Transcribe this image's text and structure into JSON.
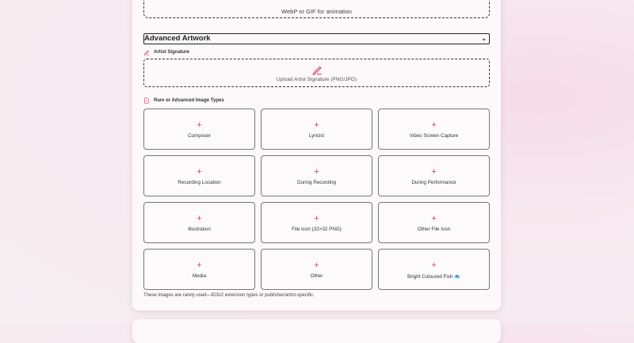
{
  "top_dropzone": {
    "hint": "WebP or GIF for animation"
  },
  "section": {
    "title": "Advanced Artwork",
    "chevron": "chevron-down-icon"
  },
  "signature": {
    "label": "Artist Signature",
    "upload_label": "Upload Artist Signature (PNG/JPG)",
    "icon": "pen-icon"
  },
  "rare": {
    "label": "Rare or Advanced Image Types",
    "icon": "file-image-icon",
    "tiles": [
      "Composer",
      "Lyricist",
      "Video Screen Capture",
      "Recording Location",
      "During Recording",
      "During Performance",
      "Illustration",
      "File Icon (32×32 PNG)",
      "Other File Icon",
      "Media",
      "Other",
      "Bright Coloured Fish 🐟"
    ],
    "plus": "+",
    "note": "These images are rarely used—ID3v2 extension types or publisher/artist-specific."
  },
  "colors": {
    "accent": "#d63a78"
  }
}
